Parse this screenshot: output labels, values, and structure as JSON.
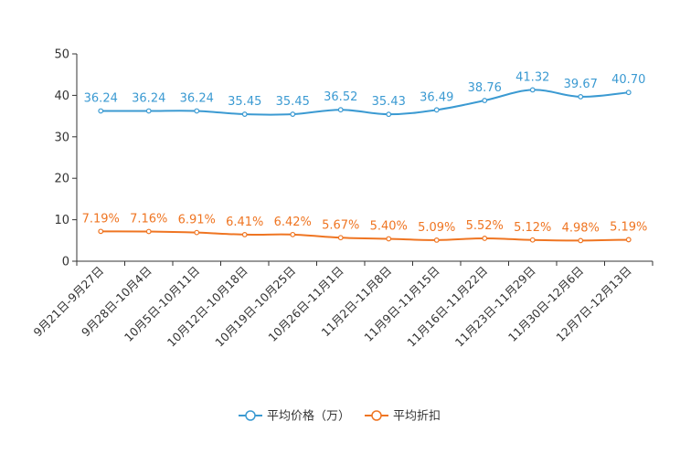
{
  "chart_data": {
    "type": "line",
    "title": "",
    "xlabel": "",
    "ylabel": "",
    "ylim": [
      0,
      50
    ],
    "yticks": [
      0,
      10,
      20,
      30,
      40,
      50
    ],
    "legend_position": "bottom-center",
    "categories": [
      "9月21日-9月27日",
      "9月28日-10月4日",
      "10月5日-10月11日",
      "10月12日-10月18日",
      "10月19日-10月25日",
      "10月26日-11月1日",
      "11月2日-11月8日",
      "11月9日-11月15日",
      "11月16日-11月22日",
      "11月23日-11月29日",
      "11月30日-12月6日",
      "12月7日-12月13日"
    ],
    "series": [
      {
        "name": "平均价格（万）",
        "color": "#3b9ad2",
        "values": [
          36.24,
          36.24,
          36.24,
          35.45,
          35.45,
          36.52,
          35.43,
          36.49,
          38.76,
          41.32,
          39.67,
          40.7
        ],
        "labels": [
          "36.24",
          "36.24",
          "36.24",
          "35.45",
          "35.45",
          "36.52",
          "35.43",
          "36.49",
          "38.76",
          "41.32",
          "39.67",
          "40.70"
        ]
      },
      {
        "name": "平均折扣",
        "color": "#ef7522",
        "values": [
          7.19,
          7.16,
          6.91,
          6.41,
          6.42,
          5.67,
          5.4,
          5.09,
          5.52,
          5.12,
          4.98,
          5.19
        ],
        "labels": [
          "7.19%",
          "7.16%",
          "6.91%",
          "6.41%",
          "6.42%",
          "5.67%",
          "5.40%",
          "5.09%",
          "5.52%",
          "5.12%",
          "4.98%",
          "5.19%"
        ]
      }
    ]
  }
}
